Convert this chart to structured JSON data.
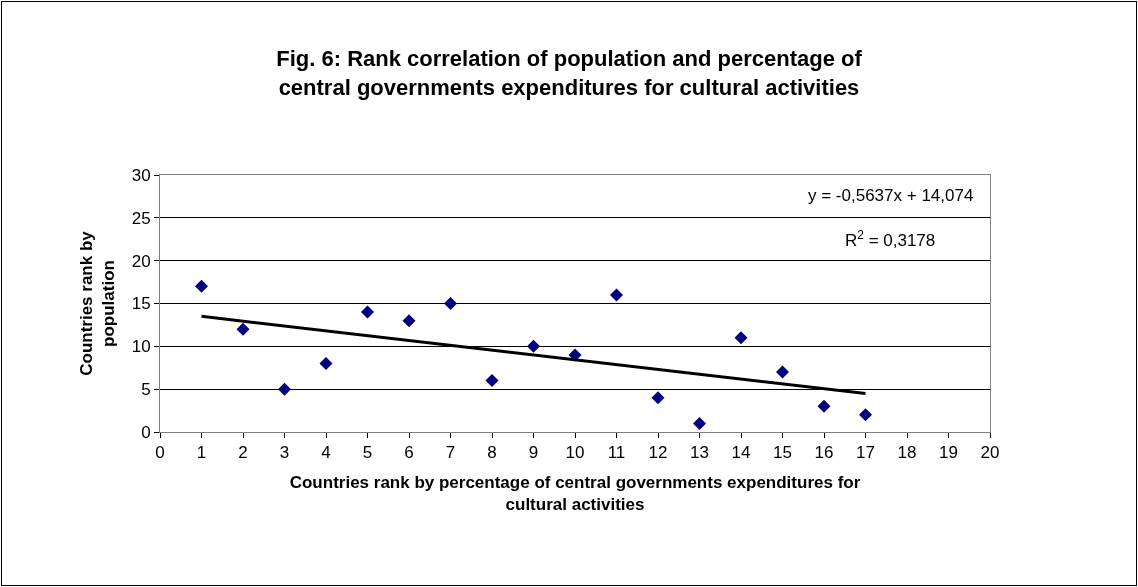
{
  "chart_data": {
    "type": "scatter",
    "title": "Fig. 6: Rank correlation of population and percentage of central governments expenditures for cultural activities",
    "xlabel": "Countries rank by percentage of central governments expenditures for cultural activities",
    "ylabel": "Countries rank by population",
    "x": [
      1,
      2,
      3,
      4,
      5,
      6,
      7,
      8,
      9,
      10,
      11,
      12,
      13,
      14,
      15,
      16,
      17
    ],
    "series": [
      {
        "color": "#000080",
        "values": [
          17,
          12,
          5,
          8,
          14,
          13,
          15,
          6,
          10,
          9,
          16,
          4,
          1,
          11,
          7,
          3,
          2
        ]
      },
      {
        "type": "line",
        "color": "#000000",
        "x": [
          1,
          17
        ],
        "values": [
          13.5,
          4.5
        ],
        "marker": "none"
      }
    ],
    "annotations": [
      "y = -0,5637x + 14,074",
      "R$^{2}$ = 0,3178"
    ],
    "xlim": [
      0,
      20
    ],
    "xticks": [
      0,
      1,
      2,
      3,
      4,
      5,
      6,
      7,
      8,
      9,
      10,
      11,
      12,
      13,
      14,
      15,
      16,
      17,
      18,
      19,
      20
    ],
    "ylim": [
      0,
      30
    ],
    "yticks": [
      0,
      5,
      10,
      15,
      20,
      25,
      30
    ],
    "grid": "y",
    "marker": "diamond"
  }
}
